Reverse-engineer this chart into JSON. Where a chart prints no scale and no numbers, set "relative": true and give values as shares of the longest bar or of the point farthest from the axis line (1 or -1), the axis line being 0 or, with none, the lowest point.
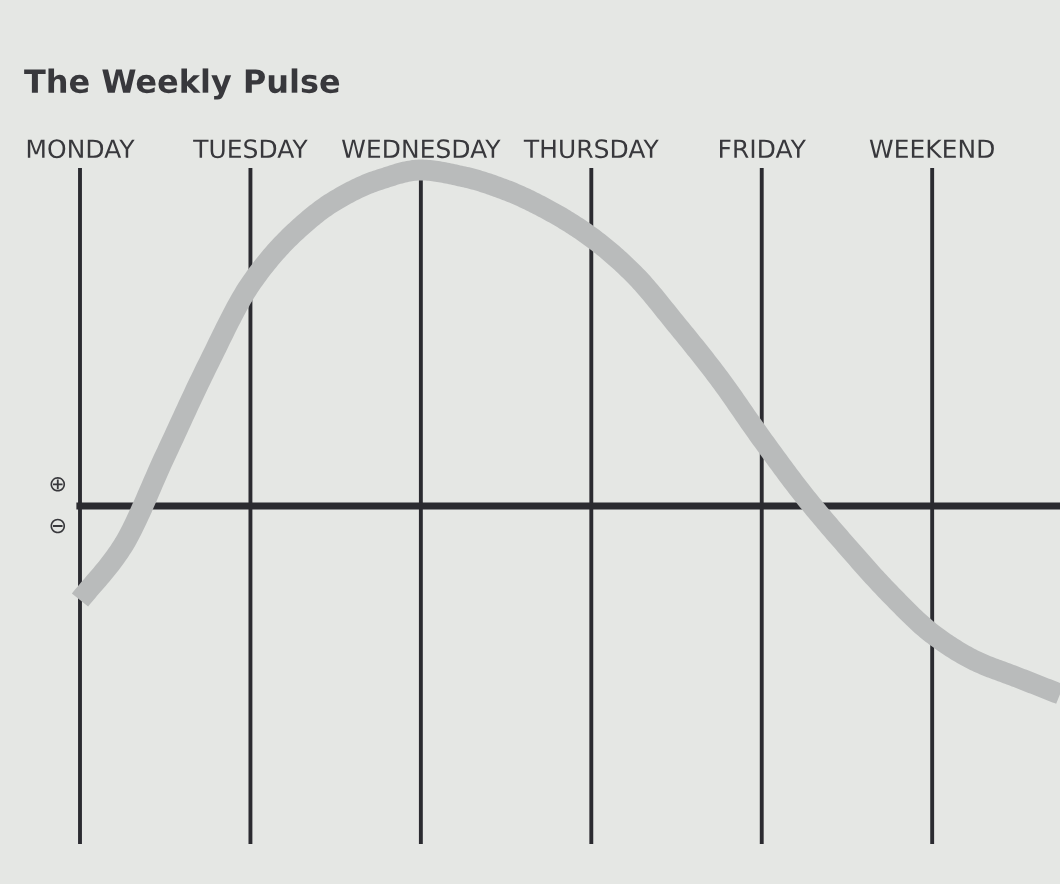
{
  "chart_data": {
    "type": "line",
    "title": "The Weekly Pulse",
    "relative": true,
    "categories": [
      "MONDAY",
      null,
      null,
      null,
      "TUESDAY",
      null,
      null,
      null,
      "WEDNESDAY",
      null,
      null,
      null,
      "THURSDAY",
      null,
      null,
      null,
      "FRIDAY",
      null,
      null,
      null,
      "WEEKEND",
      null,
      null,
      null
    ],
    "values": [
      -0.28,
      -0.12,
      0.15,
      0.42,
      0.66,
      0.81,
      0.91,
      0.97,
      1.0,
      0.98,
      0.94,
      0.88,
      0.8,
      0.69,
      0.54,
      0.38,
      0.2,
      0.03,
      -0.12,
      -0.26,
      -0.38,
      -0.46,
      -0.51,
      -0.56
    ],
    "color": "#b9bbbb",
    "grid": "x",
    "annotations": [
      "⊕",
      "⊖"
    ]
  }
}
